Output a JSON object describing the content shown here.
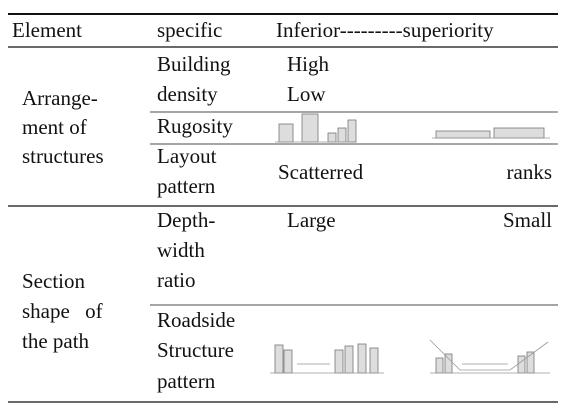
{
  "header": {
    "element": "Element",
    "specific": "specific",
    "scale": "Inferior---------superiority"
  },
  "groups": [
    {
      "element": [
        "Arrange-",
        "ment of",
        "structures"
      ],
      "rows": [
        {
          "specific": [
            "Building",
            "density"
          ],
          "levels": [
            "High",
            "Low"
          ]
        },
        {
          "specific": [
            "Rugosity"
          ]
        },
        {
          "specific": [
            "Layout",
            "pattern"
          ],
          "inferior": "Scatterred",
          "superior": "ranks"
        }
      ]
    },
    {
      "element": [
        "Section",
        "shape of",
        "the path"
      ],
      "rows": [
        {
          "specific": [
            "Depth-",
            "width",
            "ratio"
          ],
          "inferior": "Large",
          "superior": "Small"
        },
        {
          "specific": [
            "Roadside",
            "Structure",
            "pattern"
          ]
        }
      ]
    }
  ]
}
